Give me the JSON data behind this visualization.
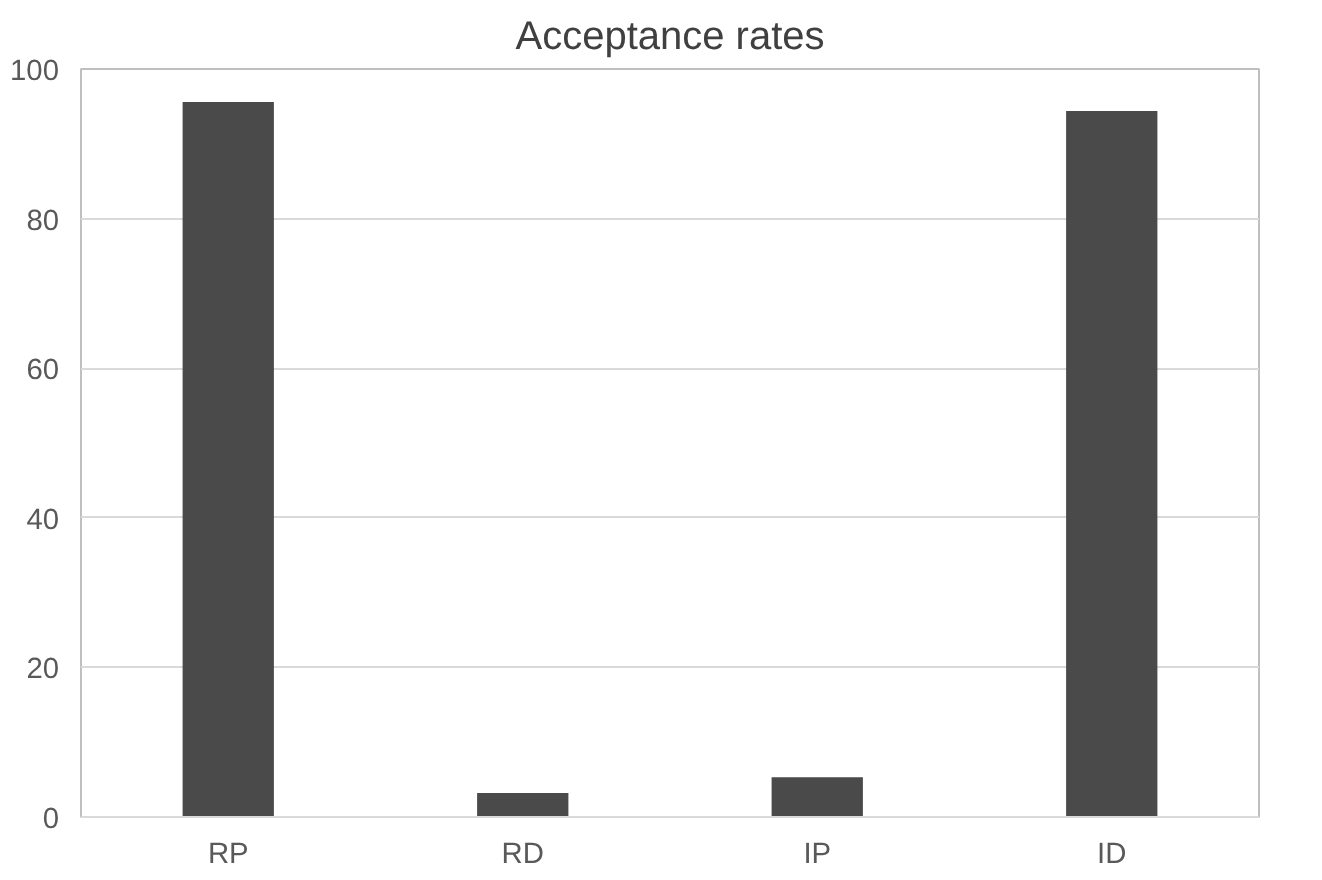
{
  "chart_data": {
    "type": "bar",
    "title": "Acceptance rates",
    "categories": [
      "RP",
      "RD",
      "IP",
      "ID"
    ],
    "values": [
      95.6,
      3.2,
      5.3,
      94.4
    ],
    "color": "#4a4a4a",
    "ylim": [
      0,
      100
    ],
    "yticks": [
      0,
      20,
      40,
      60,
      80,
      100
    ],
    "grid": "y"
  }
}
